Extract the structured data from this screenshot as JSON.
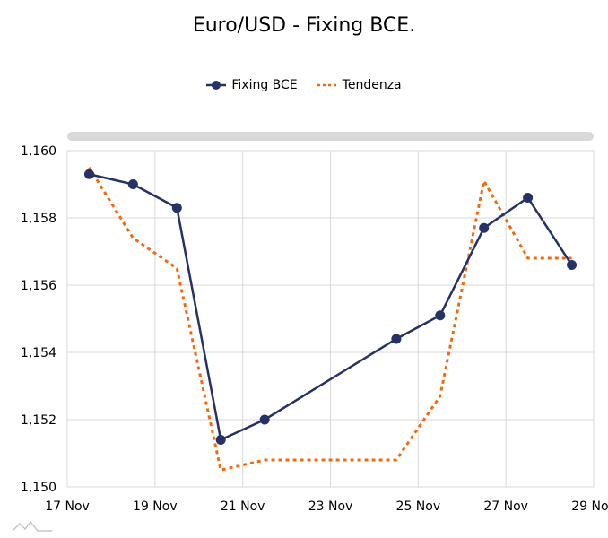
{
  "chart_data": {
    "type": "line",
    "title": "Euro/USD - Fixing BCE.",
    "xlabel": "",
    "ylabel": "",
    "x_unit": "day of November",
    "xlim": [
      17,
      29
    ],
    "ylim": [
      1.15,
      1.16
    ],
    "x_ticks": [
      17,
      19,
      21,
      23,
      25,
      27,
      29
    ],
    "x_tick_labels": [
      "17 Nov",
      "19 Nov",
      "21 Nov",
      "23 Nov",
      "25 Nov",
      "27 Nov",
      "29 Nov"
    ],
    "y_ticks": [
      1.15,
      1.152,
      1.154,
      1.156,
      1.158,
      1.16
    ],
    "y_tick_labels": [
      "1,150",
      "1,152",
      "1,154",
      "1,156",
      "1,158",
      "1,160"
    ],
    "grid": true,
    "legend_position": "top-center",
    "x": [
      17.5,
      18.5,
      19.5,
      20.5,
      21.5,
      24.5,
      25.5,
      26.5,
      27.5,
      28.5
    ],
    "series": [
      {
        "name": "Fixing BCE",
        "color": "#263165",
        "style": "solid-markers",
        "values": [
          1.1593,
          1.159,
          1.1583,
          1.1514,
          1.152,
          1.1544,
          1.1551,
          1.1577,
          1.1586,
          1.1566
        ]
      },
      {
        "name": "Tendenza",
        "color": "#f26a10",
        "style": "dashed",
        "values": [
          1.1595,
          1.1574,
          1.1565,
          1.1505,
          1.1508,
          1.1508,
          1.1527,
          1.1591,
          1.1568,
          1.1568
        ]
      }
    ]
  }
}
